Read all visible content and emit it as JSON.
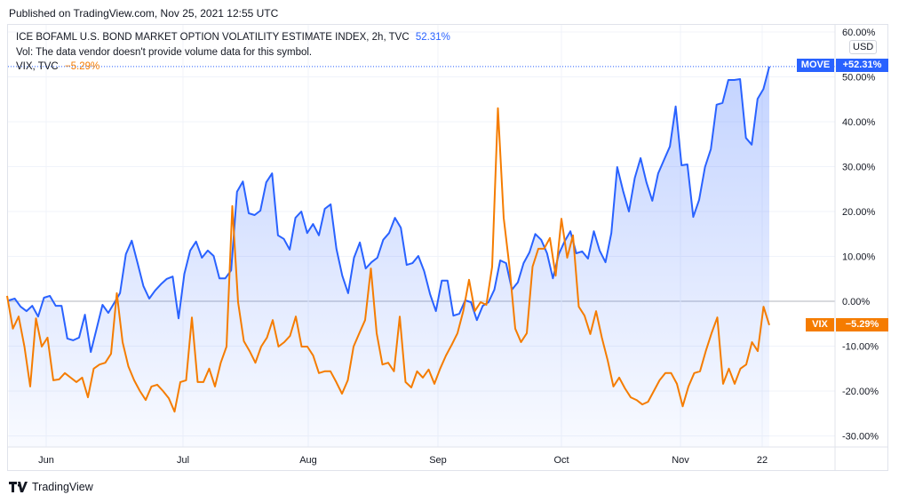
{
  "published": "Published on TradingView.com, Nov 25, 2021 12:55 UTC",
  "legend": {
    "main_title": "ICE BOFAML U.S. BOND MARKET OPTION VOLATILITY ESTIMATE INDEX, 2h, TVC",
    "main_value": "52.31%",
    "vol_note": "Vol: The data vendor doesn't provide volume data for this symbol.",
    "compare_title": "VIX, TVC",
    "compare_value": "−5.29%"
  },
  "currency": "USD",
  "brand": "TradingView",
  "colors": {
    "move": "#2962ff",
    "vix": "#f57c00",
    "grid": "#f0f3fa",
    "text": "#131722"
  },
  "chart_data": {
    "type": "line",
    "title": "ICE BOFAML U.S. BOND MARKET OPTION VOLATILITY ESTIMATE INDEX vs VIX (% change)",
    "x_ticks": [
      "Jun",
      "Jul",
      "Aug",
      "Sep",
      "Oct",
      "Nov",
      "22"
    ],
    "y_ticks": [
      "60.00%",
      "50.00%",
      "40.00%",
      "30.00%",
      "20.00%",
      "10.00%",
      "0.00%",
      "-10.00%",
      "-20.00%",
      "-30.00%"
    ],
    "ylim": [
      -31,
      61
    ],
    "grid": true,
    "series": [
      {
        "name": "MOVE",
        "last_label": "+52.31%",
        "color": "#2962ff",
        "values": [
          0.2,
          0.6,
          -1.2,
          -2.2,
          -1.0,
          -3.4,
          0.8,
          1.2,
          -1.0,
          -1.0,
          -8.3,
          -8.7,
          -8.1,
          -3.0,
          -11.3,
          -6.1,
          -0.8,
          -2.6,
          -0.4,
          1.8,
          10.5,
          13.5,
          8.5,
          3.4,
          0.6,
          2.4,
          3.8,
          5.0,
          5.5,
          -3.8,
          6.1,
          11.3,
          13.3,
          9.7,
          11.3,
          10.1,
          5.1,
          5.1,
          6.9,
          24.4,
          26.7,
          19.6,
          19.2,
          20.2,
          26.5,
          28.5,
          14.7,
          13.9,
          11.5,
          18.6,
          20.0,
          15.2,
          17.2,
          14.7,
          20.6,
          21.6,
          11.7,
          5.7,
          1.8,
          9.7,
          13.1,
          7.3,
          8.7,
          9.7,
          13.7,
          15.2,
          18.6,
          16.4,
          8.1,
          8.5,
          10.1,
          6.7,
          1.6,
          -2.2,
          4.6,
          4.6,
          -3.2,
          -2.8,
          0.2,
          -0.2,
          -4.2,
          -1.0,
          -0.2,
          2.6,
          9.1,
          8.5,
          2.6,
          4.2,
          8.5,
          10.9,
          15.0,
          13.7,
          10.7,
          5.1,
          10.5,
          13.3,
          15.6,
          10.7,
          11.1,
          9.5,
          15.6,
          11.3,
          8.7,
          15.2,
          29.9,
          24.6,
          20.0,
          27.5,
          31.9,
          26.5,
          22.4,
          28.5,
          31.5,
          34.5,
          43.4,
          30.3,
          30.5,
          18.8,
          22.6,
          29.9,
          33.9,
          43.8,
          44.2,
          49.3,
          49.3,
          49.5,
          36.4,
          34.9,
          45.1,
          47.3,
          52.3
        ]
      },
      {
        "name": "VIX",
        "last_label": "−5.29%",
        "color": "#f57c00",
        "values": [
          1.2,
          -6.1,
          -3.4,
          -10.1,
          -19.0,
          -3.8,
          -10.1,
          -8.1,
          -17.6,
          -17.4,
          -16.0,
          -17.0,
          -18.0,
          -17.0,
          -21.4,
          -15.0,
          -14.1,
          -13.7,
          -11.7,
          1.8,
          -9.1,
          -14.5,
          -17.6,
          -20.0,
          -22.0,
          -19.0,
          -18.6,
          -20.0,
          -21.6,
          -24.6,
          -18.0,
          -17.6,
          -3.6,
          -18.0,
          -18.0,
          -15.0,
          -19.0,
          -13.7,
          -10.1,
          21.2,
          -0.2,
          -8.9,
          -11.1,
          -13.7,
          -10.1,
          -8.1,
          -4.2,
          -10.1,
          -9.1,
          -7.7,
          -3.4,
          -10.1,
          -10.1,
          -12.1,
          -16.0,
          -15.6,
          -15.6,
          -18.0,
          -20.6,
          -17.6,
          -10.1,
          -7.1,
          -4.2,
          7.3,
          -7.1,
          -14.1,
          -13.7,
          -15.6,
          -3.4,
          -18.0,
          -19.2,
          -15.6,
          -17.0,
          -15.2,
          -18.4,
          -15.0,
          -12.1,
          -9.7,
          -7.1,
          -2.2,
          4.8,
          -2.2,
          -0.2,
          -0.8,
          7.7,
          43.0,
          18.6,
          7.7,
          -6.1,
          -9.1,
          -7.1,
          7.7,
          11.7,
          11.7,
          14.1,
          5.7,
          18.4,
          9.7,
          14.7,
          -1.2,
          -3.2,
          -7.3,
          -2.2,
          -8.1,
          -13.1,
          -19.0,
          -17.0,
          -19.4,
          -21.4,
          -22.0,
          -23.0,
          -22.4,
          -20.0,
          -17.6,
          -16.0,
          -16.0,
          -18.4,
          -23.4,
          -19.0,
          -16.0,
          -15.6,
          -11.1,
          -7.1,
          -3.6,
          -18.4,
          -15.0,
          -18.4,
          -15.0,
          -14.1,
          -9.1,
          -11.1,
          -1.2,
          -5.3
        ]
      }
    ]
  }
}
